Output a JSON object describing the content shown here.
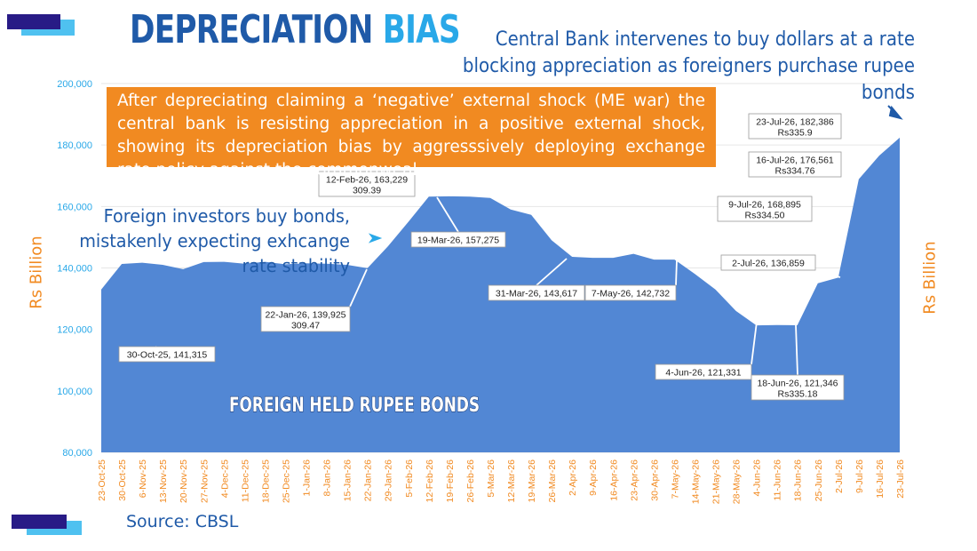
{
  "title": {
    "part1": "DEPRECIATION",
    "part2": "BIAS"
  },
  "central_bank_note": "Central Bank intervenes to buy dollars at a rate blocking appreciation as foreigners purchase rupee bonds",
  "foreign_investor_note": "Foreign investors buy bonds, mistakenly expecting exhcange rate stability",
  "orange_note": "After depreciating claiming a ‘negative’ external shock (ME war) the central bank is resisting appreciation in a positive external shock, showing its depreciation bias by aggresssively deploying exchange rate policy against the commonweal",
  "source": "Source: CBSL",
  "ylabel_left": "Rs Billion",
  "ylabel_right": "Rs Billion",
  "area_label": "FOREIGN HELD RUPEE BONDS",
  "colors": {
    "area": "#5287d4",
    "title": "#1f5aa8",
    "accent": "#29a8e8",
    "orange": "#f18a21",
    "tick": "#29a8e8"
  },
  "chart_data": {
    "type": "area",
    "ylabel": "Rs Billion",
    "ylim": [
      80000,
      200000
    ],
    "yticks": [
      "80,000",
      "100,000",
      "120,000",
      "140,000",
      "160,000",
      "180,000",
      "200,000"
    ],
    "categories": [
      "23-Oct-25",
      "30-Oct-25",
      "6-Nov-25",
      "13-Nov-25",
      "20-Nov-25",
      "27-Nov-25",
      "4-Dec-25",
      "11-Dec-25",
      "18-Dec-25",
      "25-Dec-25",
      "1-Jan-26",
      "8-Jan-26",
      "15-Jan-26",
      "22-Jan-26",
      "29-Jan-26",
      "5-Feb-26",
      "12-Feb-26",
      "19-Feb-26",
      "26-Feb-26",
      "5-Mar-26",
      "12-Mar-26",
      "19-Mar-26",
      "26-Mar-26",
      "2-Apr-26",
      "9-Apr-26",
      "16-Apr-26",
      "23-Apr-26",
      "30-Apr-26",
      "7-May-26",
      "14-May-26",
      "21-May-26",
      "28-May-26",
      "4-Jun-26",
      "11-Jun-26",
      "18-Jun-26",
      "25-Jun-26",
      "2-Jul-26",
      "9-Jul-26",
      "16-Jul-26",
      "23-Jul-26"
    ],
    "values": [
      133000,
      141315,
      141700,
      141000,
      139600,
      141900,
      142000,
      141400,
      142000,
      141200,
      141500,
      141400,
      141000,
      139925,
      147000,
      155000,
      163229,
      163300,
      163200,
      162800,
      159000,
      157275,
      149000,
      143617,
      143300,
      143300,
      144600,
      142732,
      142732,
      138000,
      133000,
      126000,
      121331,
      121400,
      121346,
      135000,
      136859,
      168895,
      176561,
      182386
    ],
    "annotations": [
      {
        "date": "30-Oct-25",
        "text": "30-Oct-25, 141,315"
      },
      {
        "date": "22-Jan-26",
        "text": "22-Jan-26, 139,925",
        "sub": "309.47"
      },
      {
        "date": "12-Feb-26",
        "text": "12-Feb-26, 163,229",
        "sub": "309.39"
      },
      {
        "date": "19-Mar-26",
        "text": "19-Mar-26, 157,275"
      },
      {
        "date": "31-Mar-26",
        "text": "31-Mar-26, 143,617"
      },
      {
        "date": "7-May-26",
        "text": "7-May-26, 142,732"
      },
      {
        "date": "4-Jun-26",
        "text": "4-Jun-26, 121,331"
      },
      {
        "date": "18-Jun-26",
        "text": "18-Jun-26, 121,346",
        "sub": "Rs335.18"
      },
      {
        "date": "2-Jul-26",
        "text": "2-Jul-26, 136,859"
      },
      {
        "date": "9-Jul-26",
        "text": "9-Jul-26, 168,895",
        "sub": "Rs334.50"
      },
      {
        "date": "16-Jul-26",
        "text": "16-Jul-26, 176,561",
        "sub": "Rs334.76"
      },
      {
        "date": "23-Jul-26",
        "text": "23-Jul-26, 182,386",
        "sub": "Rs335.9"
      }
    ]
  }
}
